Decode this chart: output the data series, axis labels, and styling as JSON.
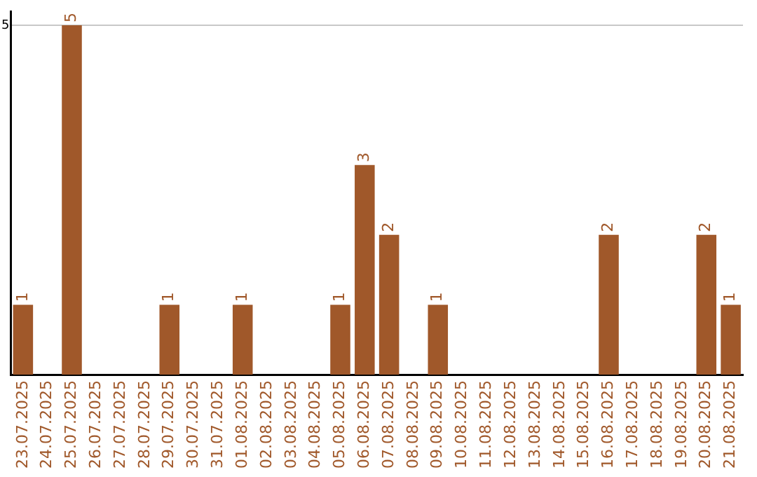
{
  "chart_data": {
    "type": "bar",
    "categories": [
      "23.07.2025",
      "24.07.2025",
      "25.07.2025",
      "26.07.2025",
      "27.07.2025",
      "28.07.2025",
      "29.07.2025",
      "30.07.2025",
      "31.07.2025",
      "01.08.2025",
      "02.08.2025",
      "03.08.2025",
      "04.08.2025",
      "05.08.2025",
      "06.08.2025",
      "07.08.2025",
      "08.08.2025",
      "09.08.2025",
      "10.08.2025",
      "11.08.2025",
      "12.08.2025",
      "13.08.2025",
      "14.08.2025",
      "15.08.2025",
      "16.08.2025",
      "17.08.2025",
      "18.08.2025",
      "19.08.2025",
      "20.08.2025",
      "21.08.2025"
    ],
    "values": [
      1,
      0,
      5,
      0,
      0,
      0,
      1,
      0,
      0,
      1,
      0,
      0,
      0,
      1,
      3,
      2,
      0,
      1,
      0,
      0,
      0,
      0,
      0,
      0,
      2,
      0,
      0,
      0,
      2,
      1
    ],
    "value_labels": [
      "1",
      null,
      "5",
      null,
      null,
      null,
      "1",
      null,
      null,
      "1",
      null,
      null,
      null,
      "1",
      "3",
      "2",
      null,
      "1",
      null,
      null,
      null,
      null,
      null,
      null,
      "2",
      null,
      null,
      null,
      "2",
      "1"
    ],
    "color": "#a0582a",
    "ylim": [
      0,
      5.2
    ],
    "yticks": [
      5
    ],
    "grid": "y",
    "legend": false
  }
}
